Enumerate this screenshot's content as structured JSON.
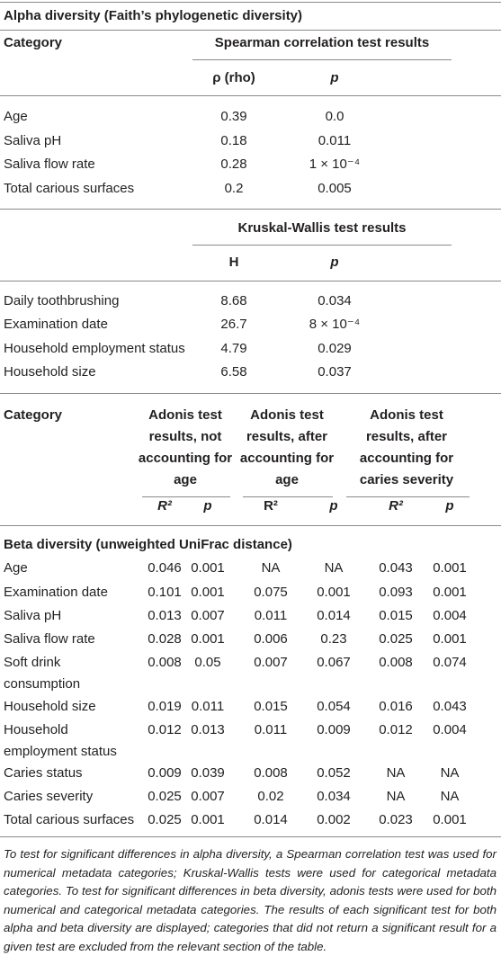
{
  "alpha": {
    "title": "Alpha diversity (Faith’s phylogenetic diversity)",
    "category_header": "Category",
    "spearman": {
      "title": "Spearman correlation test results",
      "columns": [
        "ρ (rho)",
        "p"
      ],
      "rows": [
        [
          "Age",
          "0.39",
          "0.0"
        ],
        [
          "Saliva pH",
          "0.18",
          "0.011"
        ],
        [
          "Saliva flow rate",
          "0.28",
          "1 × 10⁻⁴"
        ],
        [
          "Total carious surfaces",
          "0.2",
          "0.005"
        ]
      ]
    },
    "kruskal": {
      "title": "Kruskal-Wallis test results",
      "columns": [
        "H",
        "p"
      ],
      "rows": [
        [
          "Daily toothbrushing",
          "8.68",
          "0.034"
        ],
        [
          "Examination date",
          "26.7",
          "8 × 10⁻⁴"
        ],
        [
          "Household employment status",
          "4.79",
          "0.029"
        ],
        [
          "Household size",
          "6.58",
          "0.037"
        ]
      ]
    }
  },
  "beta": {
    "category_header": "Category",
    "groups": [
      "Adonis test\nresults, not\naccounting for\nage",
      "Adonis test\nresults, after\naccounting for\nage",
      "Adonis test\nresults, after\naccounting for\ncaries severity"
    ],
    "subcolumns": [
      "R²",
      "p",
      "R²",
      "p",
      "R²",
      "p"
    ],
    "section_title": "Beta diversity (unweighted UniFrac distance)",
    "rows": [
      [
        "Age",
        "0.046",
        "0.001",
        "NA",
        "NA",
        "0.043",
        "0.001"
      ],
      [
        "Examination date",
        "0.101",
        "0.001",
        "0.075",
        "0.001",
        "0.093",
        "0.001"
      ],
      [
        "Saliva pH",
        "0.013",
        "0.007",
        "0.011",
        "0.014",
        "0.015",
        "0.004"
      ],
      [
        "Saliva flow rate",
        "0.028",
        "0.001",
        "0.006",
        "0.23",
        "0.025",
        "0.001"
      ],
      [
        "Soft drink\nconsumption",
        "0.008",
        "0.05",
        "0.007",
        "0.067",
        "0.008",
        "0.074"
      ],
      [
        "Household size",
        "0.019",
        "0.011",
        "0.015",
        "0.054",
        "0.016",
        "0.043"
      ],
      [
        "Household\nemployment status",
        "0.012",
        "0.013",
        "0.011",
        "0.009",
        "0.012",
        "0.004"
      ],
      [
        "Caries status",
        "0.009",
        "0.039",
        "0.008",
        "0.052",
        "NA",
        "NA"
      ],
      [
        "Caries severity",
        "0.025",
        "0.007",
        "0.02",
        "0.034",
        "NA",
        "NA"
      ],
      [
        "Total carious surfaces",
        "0.025",
        "0.001",
        "0.014",
        "0.002",
        "0.023",
        "0.001"
      ]
    ]
  },
  "footnote": "To test for significant differences in alpha diversity, a Spearman correlation test was used for numerical metadata categories; Kruskal-Wallis tests were used for categorical metadata categories. To test for significant differences in beta diversity, adonis tests were used for both numerical and categorical metadata categories. The results of each significant test for both alpha and beta diversity are displayed; categories that did not return a significant result for a given test are excluded from the relevant section of the table."
}
